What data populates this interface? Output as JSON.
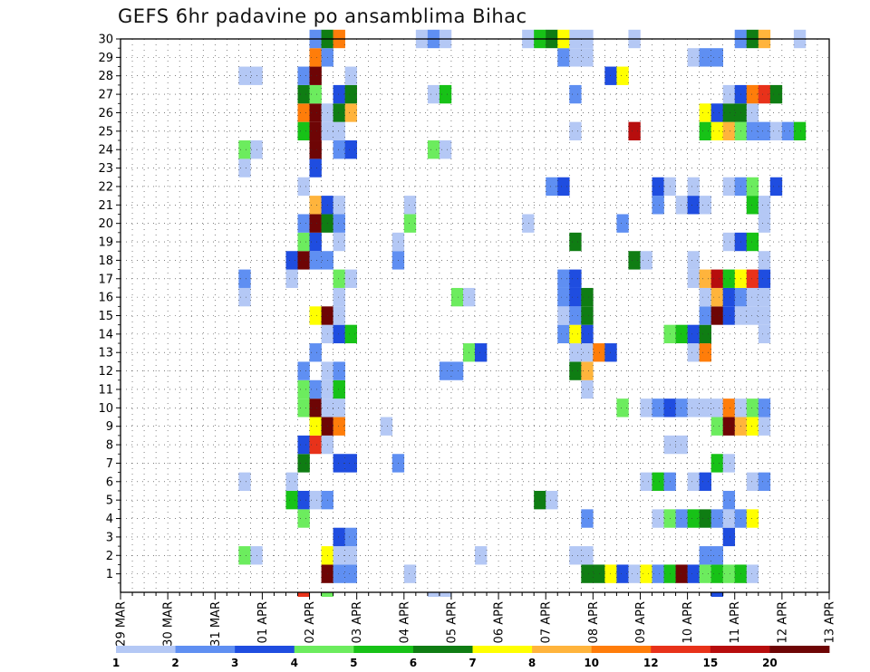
{
  "chart_data": {
    "type": "heatmap",
    "title": "GEFS 6hr padavine po ansamblima Bihac",
    "xlabel": "",
    "ylabel": "",
    "x_ticks": [
      "29 MAR",
      "30 MAR",
      "31 MAR",
      "01 APR",
      "02 APR",
      "03 APR",
      "04 APR",
      "05 APR",
      "06 APR",
      "07 APR",
      "08 APR",
      "09 APR",
      "10 APR",
      "11 APR",
      "12 APR",
      "13 APR"
    ],
    "y_ticks": [
      1,
      2,
      3,
      4,
      5,
      6,
      7,
      8,
      9,
      10,
      11,
      12,
      13,
      14,
      15,
      16,
      17,
      18,
      19,
      20,
      21,
      22,
      23,
      24,
      25,
      26,
      27,
      28,
      29,
      30
    ],
    "y_range": [
      0,
      30
    ],
    "steps_per_day": 4,
    "grid": true,
    "colorbar": {
      "labels": [
        "1",
        "2",
        "3",
        "4",
        "5",
        "6",
        "7",
        "8",
        "10",
        "12",
        "15",
        "20"
      ],
      "colors": [
        "#b4c8f5",
        "#5f8ff2",
        "#1f4de0",
        "#6cec5e",
        "#17c217",
        "#0f7d13",
        "#ffff00",
        "#ffb43c",
        "#ff7d0a",
        "#e8321a",
        "#b70d0d",
        "#6e0505"
      ]
    },
    "cells": [
      [
        1,
        17,
        11
      ],
      [
        1,
        18,
        1
      ],
      [
        1,
        19,
        1
      ],
      [
        1,
        24,
        0
      ],
      [
        1,
        39,
        5
      ],
      [
        1,
        40,
        5
      ],
      [
        1,
        41,
        6
      ],
      [
        1,
        42,
        2
      ],
      [
        1,
        43,
        0
      ],
      [
        1,
        44,
        6
      ],
      [
        1,
        45,
        1
      ],
      [
        1,
        46,
        4
      ],
      [
        1,
        47,
        11
      ],
      [
        1,
        48,
        2
      ],
      [
        1,
        49,
        3
      ],
      [
        1,
        50,
        4
      ],
      [
        1,
        51,
        3
      ],
      [
        1,
        52,
        4
      ],
      [
        1,
        53,
        0
      ],
      [
        2,
        10,
        3
      ],
      [
        2,
        11,
        0
      ],
      [
        2,
        17,
        6
      ],
      [
        2,
        18,
        0
      ],
      [
        2,
        19,
        0
      ],
      [
        2,
        30,
        0
      ],
      [
        2,
        38,
        0
      ],
      [
        2,
        39,
        0
      ],
      [
        2,
        49,
        1
      ],
      [
        2,
        50,
        1
      ],
      [
        3,
        18,
        2
      ],
      [
        3,
        19,
        1
      ],
      [
        3,
        51,
        2
      ],
      [
        4,
        15,
        3
      ],
      [
        4,
        39,
        1
      ],
      [
        4,
        45,
        0
      ],
      [
        4,
        46,
        3
      ],
      [
        4,
        47,
        1
      ],
      [
        4,
        48,
        4
      ],
      [
        4,
        49,
        5
      ],
      [
        4,
        50,
        1
      ],
      [
        4,
        51,
        0
      ],
      [
        4,
        52,
        1
      ],
      [
        4,
        53,
        6
      ],
      [
        5,
        14,
        4
      ],
      [
        5,
        15,
        2
      ],
      [
        5,
        16,
        0
      ],
      [
        5,
        17,
        1
      ],
      [
        5,
        35,
        5
      ],
      [
        5,
        36,
        0
      ],
      [
        5,
        51,
        1
      ],
      [
        6,
        10,
        0
      ],
      [
        6,
        14,
        0
      ],
      [
        6,
        44,
        0
      ],
      [
        6,
        45,
        4
      ],
      [
        6,
        46,
        1
      ],
      [
        6,
        48,
        0
      ],
      [
        6,
        49,
        2
      ],
      [
        6,
        53,
        0
      ],
      [
        6,
        54,
        1
      ],
      [
        7,
        15,
        5
      ],
      [
        7,
        18,
        2
      ],
      [
        7,
        19,
        2
      ],
      [
        7,
        23,
        1
      ],
      [
        7,
        50,
        4
      ],
      [
        7,
        51,
        0
      ],
      [
        8,
        15,
        2
      ],
      [
        8,
        16,
        9
      ],
      [
        8,
        17,
        0
      ],
      [
        8,
        46,
        0
      ],
      [
        8,
        47,
        0
      ],
      [
        9,
        16,
        6
      ],
      [
        9,
        17,
        11
      ],
      [
        9,
        18,
        8
      ],
      [
        9,
        22,
        0
      ],
      [
        9,
        50,
        3
      ],
      [
        9,
        51,
        11
      ],
      [
        9,
        52,
        7
      ],
      [
        9,
        53,
        6
      ],
      [
        9,
        54,
        0
      ],
      [
        10,
        15,
        3
      ],
      [
        10,
        16,
        11
      ],
      [
        10,
        17,
        0
      ],
      [
        10,
        18,
        0
      ],
      [
        10,
        42,
        3
      ],
      [
        10,
        44,
        0
      ],
      [
        10,
        45,
        1
      ],
      [
        10,
        46,
        2
      ],
      [
        10,
        47,
        1
      ],
      [
        10,
        48,
        0
      ],
      [
        10,
        49,
        0
      ],
      [
        10,
        50,
        0
      ],
      [
        10,
        51,
        8
      ],
      [
        10,
        52,
        0
      ],
      [
        10,
        53,
        3
      ],
      [
        10,
        54,
        1
      ],
      [
        11,
        15,
        3
      ],
      [
        11,
        16,
        1
      ],
      [
        11,
        17,
        0
      ],
      [
        11,
        18,
        4
      ],
      [
        11,
        39,
        0
      ],
      [
        12,
        15,
        1
      ],
      [
        12,
        17,
        0
      ],
      [
        12,
        18,
        1
      ],
      [
        12,
        27,
        1
      ],
      [
        12,
        28,
        1
      ],
      [
        12,
        38,
        5
      ],
      [
        12,
        39,
        7
      ],
      [
        13,
        16,
        1
      ],
      [
        13,
        29,
        3
      ],
      [
        13,
        30,
        2
      ],
      [
        13,
        38,
        0
      ],
      [
        13,
        39,
        0
      ],
      [
        13,
        40,
        8
      ],
      [
        13,
        41,
        2
      ],
      [
        13,
        48,
        0
      ],
      [
        13,
        49,
        8
      ],
      [
        14,
        17,
        0
      ],
      [
        14,
        18,
        2
      ],
      [
        14,
        19,
        4
      ],
      [
        14,
        37,
        1
      ],
      [
        14,
        38,
        6
      ],
      [
        14,
        39,
        2
      ],
      [
        14,
        46,
        3
      ],
      [
        14,
        47,
        4
      ],
      [
        14,
        48,
        2
      ],
      [
        14,
        49,
        5
      ],
      [
        14,
        54,
        0
      ],
      [
        15,
        16,
        6
      ],
      [
        15,
        17,
        11
      ],
      [
        15,
        18,
        0
      ],
      [
        15,
        37,
        0
      ],
      [
        15,
        38,
        1
      ],
      [
        15,
        39,
        5
      ],
      [
        15,
        49,
        1
      ],
      [
        15,
        50,
        11
      ],
      [
        15,
        51,
        2
      ],
      [
        15,
        52,
        0
      ],
      [
        15,
        53,
        0
      ],
      [
        15,
        54,
        0
      ],
      [
        16,
        10,
        0
      ],
      [
        16,
        18,
        0
      ],
      [
        16,
        28,
        3
      ],
      [
        16,
        29,
        0
      ],
      [
        16,
        37,
        1
      ],
      [
        16,
        38,
        2
      ],
      [
        16,
        39,
        5
      ],
      [
        16,
        49,
        0
      ],
      [
        16,
        50,
        7
      ],
      [
        16,
        51,
        2
      ],
      [
        16,
        52,
        1
      ],
      [
        16,
        53,
        0
      ],
      [
        16,
        54,
        0
      ],
      [
        17,
        10,
        1
      ],
      [
        17,
        14,
        0
      ],
      [
        17,
        18,
        3
      ],
      [
        17,
        19,
        0
      ],
      [
        17,
        37,
        1
      ],
      [
        17,
        38,
        2
      ],
      [
        17,
        48,
        0
      ],
      [
        17,
        49,
        7
      ],
      [
        17,
        50,
        10
      ],
      [
        17,
        51,
        4
      ],
      [
        17,
        52,
        6
      ],
      [
        17,
        53,
        9
      ],
      [
        17,
        54,
        2
      ],
      [
        18,
        14,
        2
      ],
      [
        18,
        15,
        11
      ],
      [
        18,
        16,
        1
      ],
      [
        18,
        17,
        1
      ],
      [
        18,
        23,
        1
      ],
      [
        18,
        43,
        5
      ],
      [
        18,
        44,
        0
      ],
      [
        18,
        48,
        0
      ],
      [
        18,
        54,
        0
      ],
      [
        19,
        15,
        3
      ],
      [
        19,
        16,
        2
      ],
      [
        19,
        18,
        0
      ],
      [
        19,
        23,
        0
      ],
      [
        19,
        38,
        5
      ],
      [
        19,
        51,
        0
      ],
      [
        19,
        52,
        2
      ],
      [
        19,
        53,
        4
      ],
      [
        20,
        15,
        1
      ],
      [
        20,
        16,
        11
      ],
      [
        20,
        17,
        5
      ],
      [
        20,
        18,
        1
      ],
      [
        20,
        24,
        3
      ],
      [
        20,
        34,
        0
      ],
      [
        20,
        42,
        1
      ],
      [
        20,
        54,
        0
      ],
      [
        21,
        16,
        7
      ],
      [
        21,
        17,
        2
      ],
      [
        21,
        18,
        0
      ],
      [
        21,
        24,
        0
      ],
      [
        21,
        45,
        1
      ],
      [
        21,
        47,
        0
      ],
      [
        21,
        48,
        2
      ],
      [
        21,
        49,
        0
      ],
      [
        21,
        53,
        4
      ],
      [
        21,
        54,
        0
      ],
      [
        22,
        15,
        0
      ],
      [
        22,
        36,
        1
      ],
      [
        22,
        37,
        2
      ],
      [
        22,
        45,
        2
      ],
      [
        22,
        46,
        0
      ],
      [
        22,
        48,
        0
      ],
      [
        22,
        51,
        0
      ],
      [
        22,
        52,
        1
      ],
      [
        22,
        53,
        3
      ],
      [
        22,
        55,
        2
      ],
      [
        23,
        10,
        0
      ],
      [
        23,
        16,
        2
      ],
      [
        24,
        10,
        3
      ],
      [
        24,
        11,
        0
      ],
      [
        24,
        16,
        11
      ],
      [
        24,
        18,
        1
      ],
      [
        24,
        19,
        2
      ],
      [
        24,
        26,
        3
      ],
      [
        24,
        27,
        0
      ],
      [
        25,
        15,
        4
      ],
      [
        25,
        16,
        11
      ],
      [
        25,
        17,
        0
      ],
      [
        25,
        18,
        0
      ],
      [
        25,
        38,
        0
      ],
      [
        25,
        43,
        10
      ],
      [
        25,
        49,
        4
      ],
      [
        25,
        50,
        6
      ],
      [
        25,
        51,
        7
      ],
      [
        25,
        52,
        3
      ],
      [
        25,
        53,
        1
      ],
      [
        25,
        54,
        1
      ],
      [
        25,
        55,
        0
      ],
      [
        25,
        56,
        1
      ],
      [
        25,
        57,
        4
      ],
      [
        26,
        15,
        8
      ],
      [
        26,
        16,
        11
      ],
      [
        26,
        17,
        0
      ],
      [
        26,
        18,
        5
      ],
      [
        26,
        19,
        7
      ],
      [
        26,
        49,
        6
      ],
      [
        26,
        50,
        2
      ],
      [
        26,
        51,
        5
      ],
      [
        26,
        52,
        5
      ],
      [
        26,
        53,
        0
      ],
      [
        27,
        15,
        5
      ],
      [
        27,
        16,
        3
      ],
      [
        27,
        18,
        2
      ],
      [
        27,
        19,
        5
      ],
      [
        27,
        26,
        0
      ],
      [
        27,
        27,
        4
      ],
      [
        27,
        38,
        1
      ],
      [
        27,
        51,
        0
      ],
      [
        27,
        52,
        2
      ],
      [
        27,
        53,
        8
      ],
      [
        27,
        54,
        9
      ],
      [
        27,
        55,
        5
      ],
      [
        28,
        10,
        0
      ],
      [
        28,
        11,
        0
      ],
      [
        28,
        15,
        1
      ],
      [
        28,
        16,
        11
      ],
      [
        28,
        19,
        0
      ],
      [
        28,
        41,
        2
      ],
      [
        28,
        42,
        6
      ],
      [
        29,
        16,
        8
      ],
      [
        29,
        17,
        1
      ],
      [
        29,
        37,
        1
      ],
      [
        29,
        38,
        0
      ],
      [
        29,
        39,
        0
      ],
      [
        29,
        48,
        0
      ],
      [
        29,
        49,
        1
      ],
      [
        29,
        50,
        1
      ],
      [
        30,
        16,
        1
      ],
      [
        30,
        17,
        5
      ],
      [
        30,
        18,
        8
      ],
      [
        30,
        25,
        0
      ],
      [
        30,
        26,
        1
      ],
      [
        30,
        27,
        0
      ],
      [
        30,
        34,
        0
      ],
      [
        30,
        35,
        4
      ],
      [
        30,
        36,
        5
      ],
      [
        30,
        37,
        6
      ],
      [
        30,
        38,
        0
      ],
      [
        30,
        39,
        0
      ],
      [
        30,
        43,
        0
      ],
      [
        30,
        52,
        1
      ],
      [
        30,
        53,
        5
      ],
      [
        30,
        54,
        7
      ],
      [
        30,
        57,
        0
      ],
      [
        0,
        15,
        9
      ],
      [
        0,
        17,
        3
      ],
      [
        0,
        26,
        0
      ],
      [
        0,
        27,
        0
      ],
      [
        0,
        50,
        2
      ]
    ]
  }
}
